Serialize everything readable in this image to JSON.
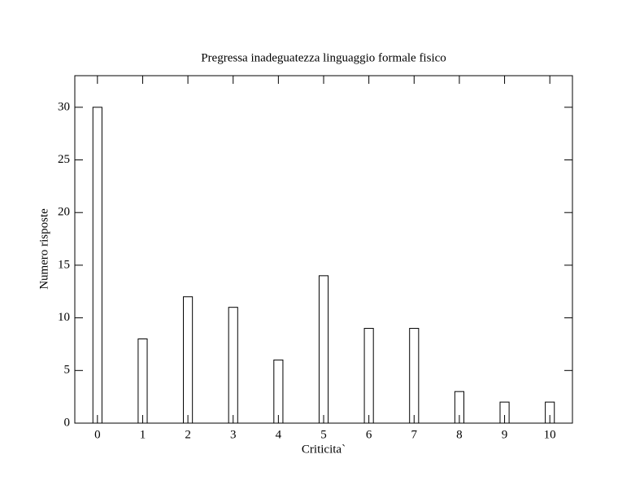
{
  "chart_data": {
    "type": "bar",
    "title": "Pregressa inadeguatezza linguaggio formale fisico",
    "xlabel": "Criticita`",
    "ylabel": "Numero risposte",
    "x": [
      0,
      1,
      2,
      3,
      4,
      5,
      6,
      7,
      8,
      9,
      10
    ],
    "values": [
      30,
      8,
      12,
      11,
      6,
      14,
      9,
      9,
      3,
      2,
      2
    ],
    "color": "#ffffff",
    "xlim": [
      -0.5,
      10.5
    ],
    "xticks": [
      0,
      1,
      2,
      3,
      4,
      5,
      6,
      7,
      8,
      9,
      10
    ],
    "ylim": [
      0,
      33
    ],
    "yticks": [
      0,
      5,
      10,
      15,
      20,
      25,
      30
    ]
  }
}
